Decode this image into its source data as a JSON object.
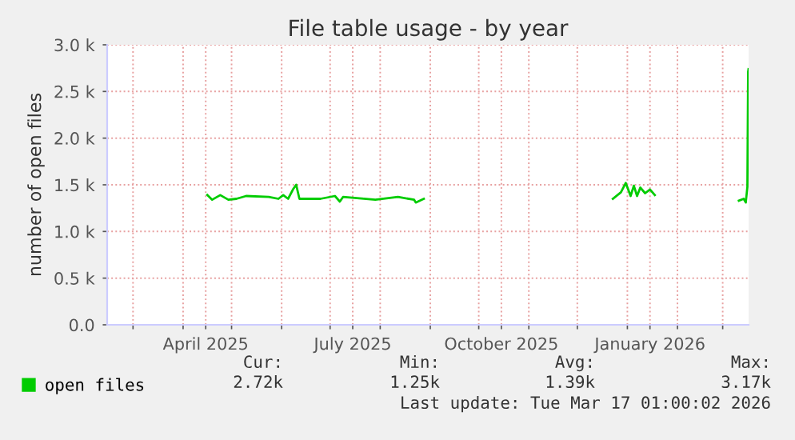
{
  "chart_data": {
    "type": "line",
    "title": "File table usage - by year",
    "ylabel": "number of open files",
    "x": [
      "2025-04-16",
      "2025-04-19",
      "2025-04-24",
      "2025-04-29",
      "2025-05-04",
      "2025-05-10",
      "2025-05-24",
      "2025-05-30",
      "2025-06-02",
      "2025-06-05",
      "2025-06-08",
      "2025-06-10",
      "2025-06-12",
      "2025-06-25",
      "2025-07-04",
      "2025-07-07",
      "2025-07-09",
      "2025-07-29",
      "2025-08-12",
      "2025-08-22",
      "2025-08-23",
      "2025-08-28",
      "2025-10-01",
      "2025-12-23",
      "2025-12-28",
      "2025-12-31",
      "2026-01-03",
      "2026-01-05",
      "2026-01-07",
      "2026-01-09",
      "2026-01-12",
      "2026-01-15",
      "2026-01-18",
      "2026-02-01",
      "2026-03-11",
      "2026-03-14",
      "2026-03-15T07:00",
      "2026-03-16T07:00",
      "2026-03-16T18:00",
      "2026-03-17T00:00"
    ],
    "series": [
      {
        "name": "open files",
        "color": "#00cc00",
        "values": [
          1390,
          1340,
          1390,
          1340,
          1350,
          1380,
          1370,
          1350,
          1390,
          1350,
          1450,
          1500,
          1350,
          1350,
          1380,
          1320,
          1370,
          1340,
          1370,
          1340,
          1310,
          1350,
          null,
          1350,
          1420,
          1520,
          1380,
          1490,
          1380,
          1470,
          1410,
          1450,
          1390,
          null,
          1330,
          1350,
          1310,
          1480,
          2710,
          2740
        ]
      }
    ],
    "xlim": [
      "2025-02-13",
      "2026-03-17T01:00"
    ],
    "xticks": [
      {
        "value": "2025-03-01",
        "label": null
      },
      {
        "value": "2025-04-01",
        "label": null
      },
      {
        "value": "2025-04-15",
        "label": "April 2025"
      },
      {
        "value": "2025-05-01",
        "label": null
      },
      {
        "value": "2025-06-01",
        "label": null
      },
      {
        "value": "2025-07-01",
        "label": null
      },
      {
        "value": "2025-07-15",
        "label": "July 2025"
      },
      {
        "value": "2025-08-01",
        "label": null
      },
      {
        "value": "2025-09-01",
        "label": null
      },
      {
        "value": "2025-10-01",
        "label": null
      },
      {
        "value": "2025-10-15",
        "label": "October 2025"
      },
      {
        "value": "2025-11-01",
        "label": null
      },
      {
        "value": "2025-12-01",
        "label": null
      },
      {
        "value": "2026-01-01",
        "label": null
      },
      {
        "value": "2026-01-15",
        "label": "January 2026"
      },
      {
        "value": "2026-02-01",
        "label": null
      },
      {
        "value": "2026-03-01",
        "label": null
      }
    ],
    "ylim": [
      0,
      3000
    ],
    "yticks": [
      {
        "value": 0,
        "label": "0.0"
      },
      {
        "value": 500,
        "label": "0.5 k"
      },
      {
        "value": 1000,
        "label": "1.0 k"
      },
      {
        "value": 1500,
        "label": "1.5 k"
      },
      {
        "value": 2000,
        "label": "2.0 k"
      },
      {
        "value": 2500,
        "label": "2.5 k"
      },
      {
        "value": 3000,
        "label": "3.0 k"
      }
    ],
    "grid": true,
    "legend": "bottom",
    "marker": "none",
    "line_style": "solid",
    "annotations": [
      "Cur:",
      "2.72k",
      "Min:",
      "1.25k",
      "Avg:",
      "1.39k",
      "Max:",
      "3.17k",
      "Last update: Tue Mar 17 01:00:02 2026"
    ]
  }
}
